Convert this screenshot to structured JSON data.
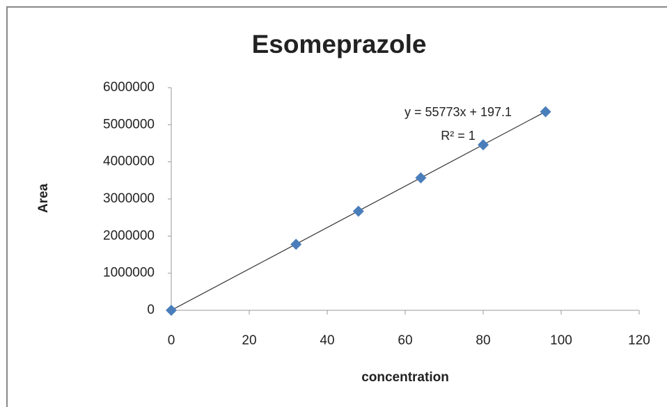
{
  "chart_data": {
    "type": "scatter",
    "title": "Esomeprazole",
    "x_label": "concentration",
    "y_label": "Area",
    "x": [
      0,
      32,
      48,
      64,
      80,
      96
    ],
    "values": [
      0,
      1780000,
      2670000,
      3570000,
      4460000,
      5350000
    ],
    "color": "#4a7ebb",
    "xlim": [
      0,
      120
    ],
    "xticks": [
      0,
      20,
      40,
      60,
      80,
      100,
      120
    ],
    "ylim": [
      0,
      6000000
    ],
    "yticks": [
      0,
      1000000,
      2000000,
      3000000,
      4000000,
      5000000,
      6000000
    ],
    "grid": false,
    "trendline": {
      "slope": 55773,
      "intercept": 197.1,
      "equation": "y = 55773x + 197.1",
      "r2": "R² = 1"
    }
  }
}
